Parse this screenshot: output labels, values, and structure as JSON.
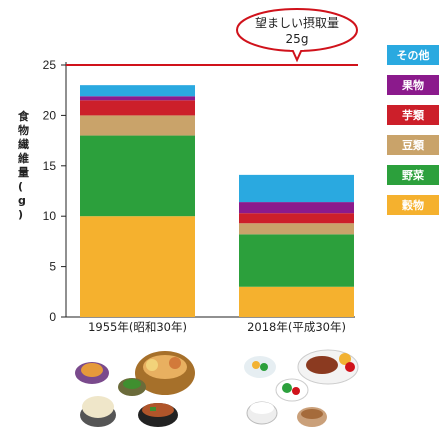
{
  "chart_data": {
    "type": "bar",
    "stacked": true,
    "categories": [
      "1955年(昭和30年)",
      "2018年(平成30年)"
    ],
    "series": [
      {
        "name": "穀物",
        "color": "#f5b12e",
        "values": [
          10.0,
          3.0
        ]
      },
      {
        "name": "野菜",
        "color": "#2ca03c",
        "values": [
          8.0,
          5.2
        ]
      },
      {
        "name": "豆類",
        "color": "#c9a36a",
        "values": [
          2.0,
          1.1
        ]
      },
      {
        "name": "芋類",
        "color": "#cc1f2a",
        "values": [
          1.5,
          1.0
        ]
      },
      {
        "name": "果物",
        "color": "#8b1a8c",
        "values": [
          0.4,
          1.1
        ]
      },
      {
        "name": "その他",
        "color": "#2aa9e0",
        "values": [
          1.1,
          2.7
        ]
      }
    ],
    "ylabel": "食物繊維量(g)",
    "ylim": [
      0,
      25
    ],
    "yticks": [
      0,
      5,
      10,
      15,
      20,
      25
    ],
    "reference_line": {
      "value": 25,
      "color": "#d0121b"
    },
    "callout": {
      "line1": "望ましい摂取量",
      "line2": "25g"
    },
    "legend_position": "right"
  },
  "food_images": [
    "1955-meal-illustration",
    "2018-meal-illustration"
  ]
}
